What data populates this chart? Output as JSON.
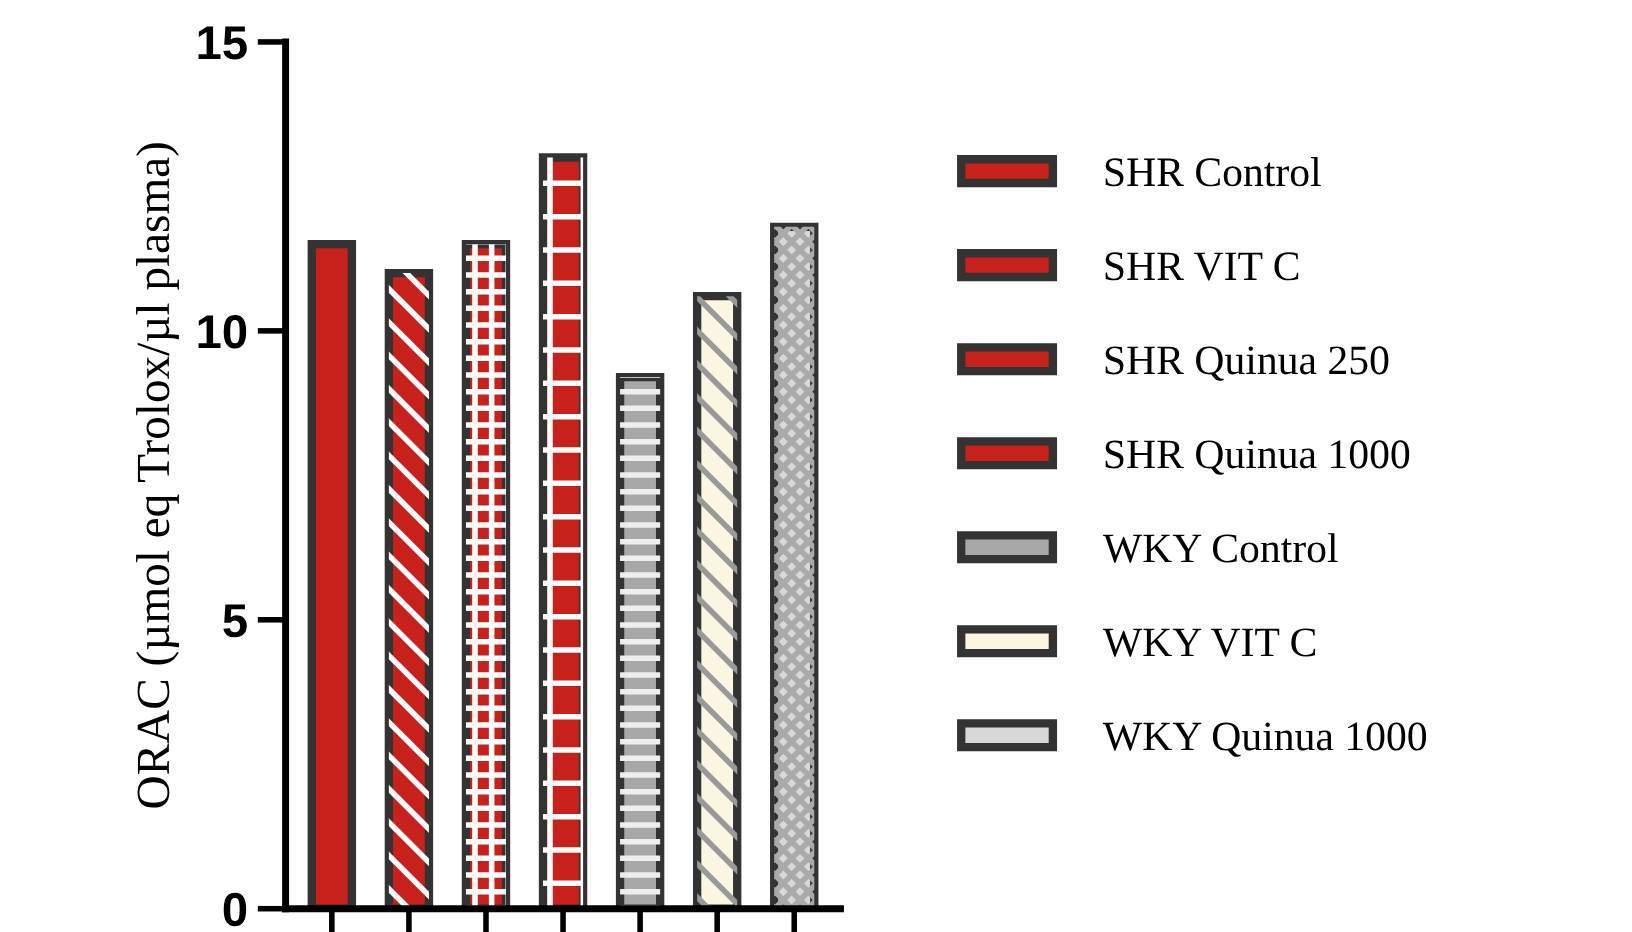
{
  "chart_data": {
    "type": "bar",
    "ylabel": "ORAC (µmol eq Trolox/µl plasma)",
    "categories": [
      null,
      null,
      null,
      null,
      null,
      null,
      null
    ],
    "ylim": [
      0,
      15
    ],
    "yticks": [
      0,
      5,
      10,
      15
    ],
    "tick_labels": "y",
    "grid": false,
    "legend": "right",
    "series": [
      {
        "name": "SHR Control",
        "color": "#c8201a",
        "values": [
          11.5,
          null,
          null,
          null,
          null,
          null,
          null
        ]
      },
      {
        "name": "SHR VIT C",
        "color": "#c8201a",
        "values": [
          null,
          11.0,
          null,
          null,
          null,
          null,
          null
        ]
      },
      {
        "name": "SHR Quinua 250",
        "color": "#c8201a",
        "values": [
          null,
          null,
          11.5,
          null,
          null,
          null,
          null
        ]
      },
      {
        "name": "SHR Quinua 1000",
        "color": "#c8201a",
        "values": [
          null,
          null,
          null,
          13.0,
          null,
          null,
          null
        ]
      },
      {
        "name": "WKY Control",
        "color": "#a8a8a8",
        "values": [
          null,
          null,
          null,
          null,
          9.2,
          null,
          null
        ]
      },
      {
        "name": "WKY VIT C",
        "color": "#fbf6e2",
        "values": [
          null,
          null,
          null,
          null,
          null,
          10.6,
          null
        ]
      },
      {
        "name": "WKY Quinua 1000",
        "color": "#d8d8d8",
        "values": [
          null,
          null,
          null,
          null,
          null,
          null,
          11.8
        ]
      }
    ]
  }
}
